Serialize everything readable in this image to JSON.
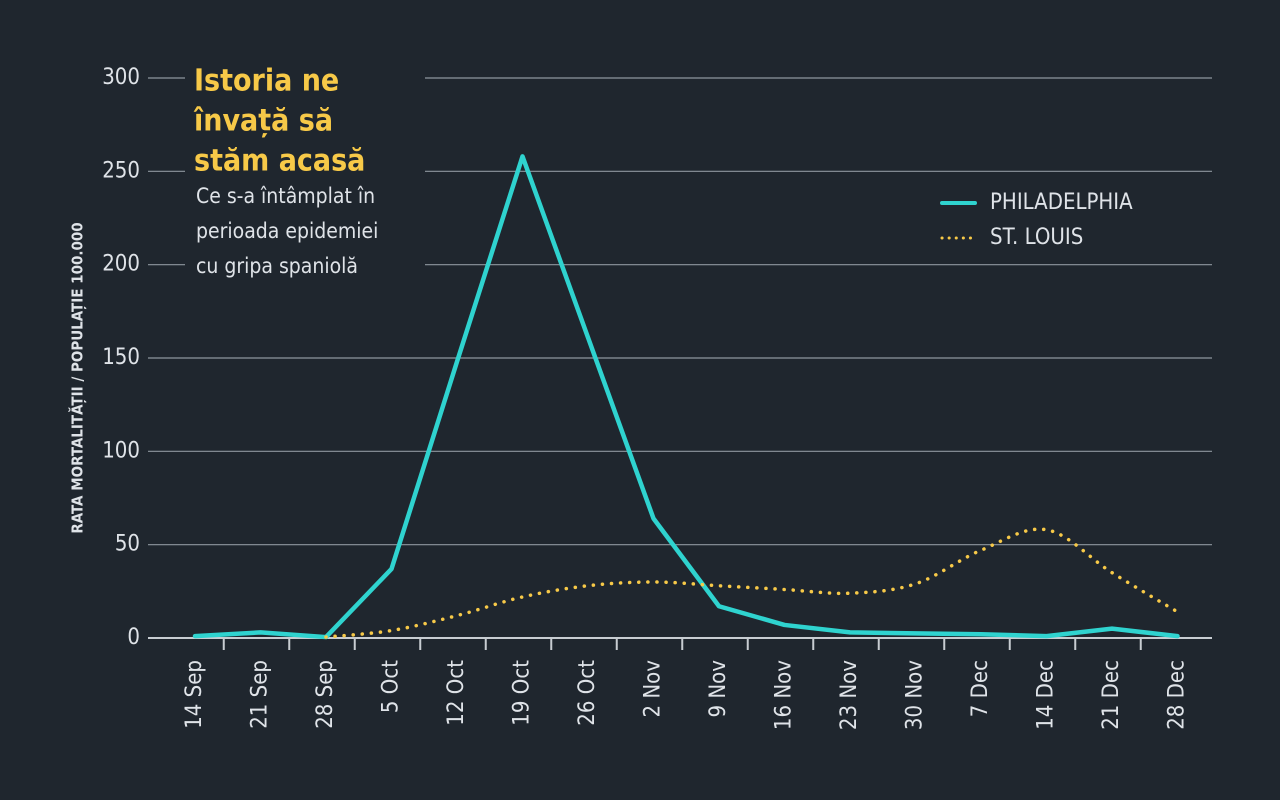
{
  "chart_data": {
    "type": "line",
    "title": [
      "Istoria ne",
      "învață să",
      "stăm acasă"
    ],
    "subtitle": [
      "Ce s-a întâmplat în",
      "perioada epidemiei",
      "cu gripa spaniolă"
    ],
    "ylabel": "RATA MORTALITĂȚII / POPULAȚIE 100.000",
    "categories": [
      "14 Sep",
      "21 Sep",
      "28 Sep",
      "5 Oct",
      "12 Oct",
      "19 Oct",
      "26 Oct",
      "2 Nov",
      "9 Nov",
      "16 Nov",
      "23 Nov",
      "30 Nov",
      "7 Dec",
      "14 Dec",
      "21 Dec",
      "28 Dec"
    ],
    "series": [
      {
        "name": "PHILADELPHIA",
        "color": "#2fd3cf",
        "style": "solid",
        "values": [
          1,
          3,
          0.5,
          37,
          148,
          258,
          161,
          64,
          17,
          7,
          3,
          2.5,
          2,
          1,
          5,
          1
        ]
      },
      {
        "name": "ST. LOUIS",
        "color": "#f7c948",
        "style": "dotted",
        "values": [
          null,
          null,
          0.5,
          4,
          12,
          22,
          28,
          30,
          28,
          26,
          24,
          29,
          47,
          58,
          35,
          14
        ]
      }
    ],
    "ylim": [
      0,
      300
    ],
    "yticks": [
      0,
      50,
      100,
      150,
      200,
      250,
      300
    ],
    "grid": true,
    "legend": "upper right"
  }
}
